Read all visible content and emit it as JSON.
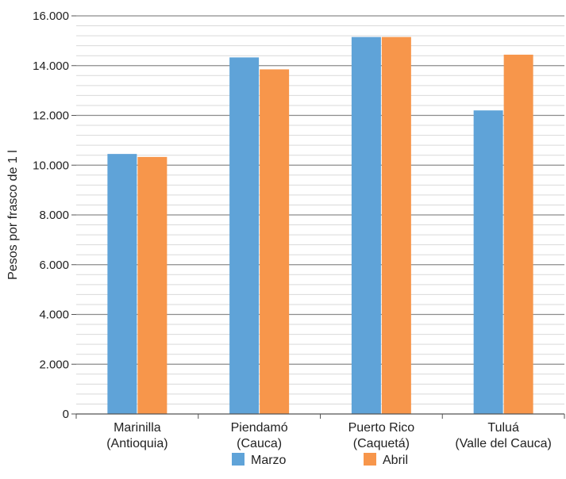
{
  "chart_data": {
    "type": "bar",
    "title": "",
    "xlabel": "",
    "ylabel": "Pesos por frasco de 1 l",
    "ylim": [
      0,
      16000
    ],
    "major_tick_step": 2000,
    "minor_tick_step": 400,
    "grid": true,
    "legend_position": "bottom",
    "categories": [
      [
        "Marinilla",
        "(Antioquia)"
      ],
      [
        "Piendamó",
        "(Cauca)"
      ],
      [
        "Puerto Rico",
        "(Caquetá)"
      ],
      [
        "Tuluá",
        "(Valle del Cauca)"
      ]
    ],
    "y_tick_labels": [
      "0",
      "2.000",
      "4.000",
      "6.000",
      "8.000",
      "10.000",
      "12.000",
      "14.000",
      "16.000"
    ],
    "series": [
      {
        "name": "Marzo",
        "color": "#5fa3d8",
        "values": [
          10450,
          14330,
          15150,
          12200
        ]
      },
      {
        "name": "Abril",
        "color": "#f7964b",
        "values": [
          10330,
          13850,
          15150,
          14440
        ]
      }
    ]
  }
}
